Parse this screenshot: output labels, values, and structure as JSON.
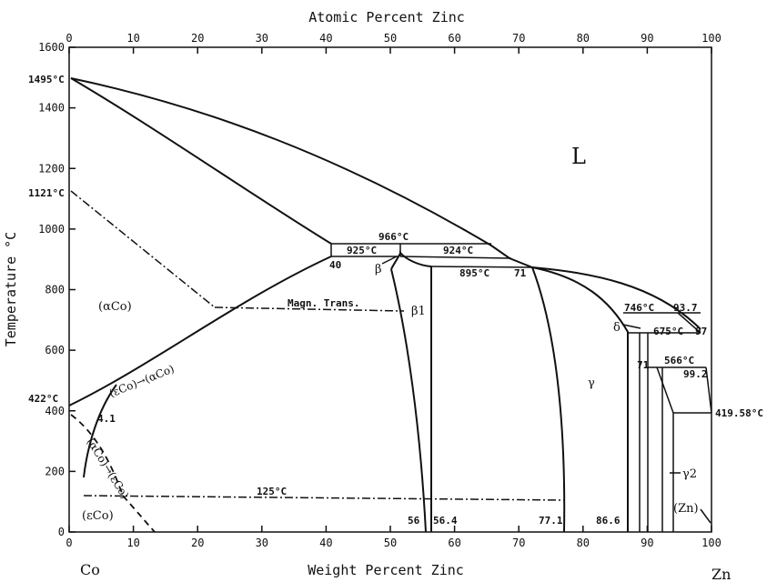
{
  "chart_data": {
    "type": "phase-diagram",
    "title": "",
    "xlabel_bottom": "Weight Percent Zinc",
    "xlabel_top": "Atomic Percent Zinc",
    "ylabel": "Temperature °C",
    "left_element": "Co",
    "right_element": "Zn",
    "xlim": [
      0,
      100
    ],
    "ylim": [
      0,
      1600
    ],
    "bottom_ticks": [
      "0",
      "10",
      "20",
      "30",
      "40",
      "50",
      "60",
      "70",
      "80",
      "90",
      "100"
    ],
    "top_ticks": [
      "0",
      "10",
      "20",
      "30",
      "40",
      "50",
      "60",
      "70",
      "80",
      "90",
      "100"
    ],
    "y_ticks": [
      "0",
      "200",
      "400",
      "600",
      "800",
      "1000",
      "1200",
      "1400",
      "1600"
    ],
    "temperature_labels": [
      "1495°C",
      "1121°C",
      "422°C",
      "966°C",
      "925°C",
      "924°C",
      "895°C",
      "746°C",
      "675°C",
      "566°C",
      "419.58°C",
      "125°C"
    ],
    "composition_labels": [
      "40",
      "71",
      "93.7",
      "97",
      "99.2",
      "4.1",
      "56",
      "56.4",
      "77.1",
      "86.6",
      "71"
    ],
    "phase_labels": [
      "L",
      "(αCo)",
      "(εCo)",
      "β",
      "β1",
      "γ",
      "δ",
      "γ2",
      "(Zn)",
      "Magn. Trans.",
      "(εCo)→(αCo)",
      "(αCo)→(εCo)"
    ]
  }
}
